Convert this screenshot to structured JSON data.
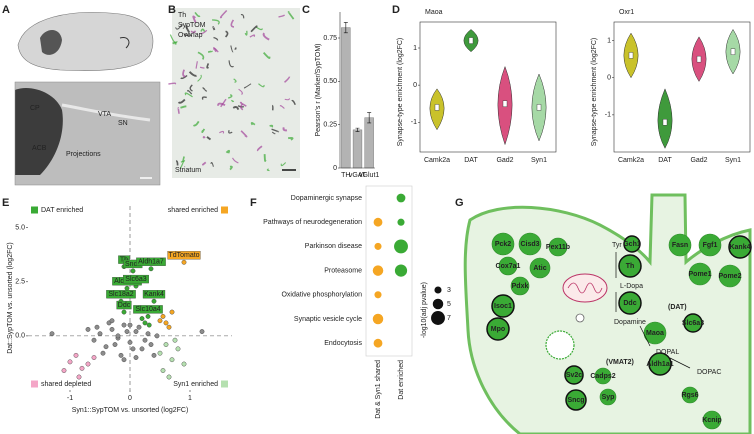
{
  "chart_data": [
    {
      "type": "bar",
      "ylabel": "Pearson's r (Marker/SypTOM)",
      "categories": [
        "TH",
        "vGAT",
        "vGlut1"
      ],
      "values": [
        0.81,
        0.22,
        0.29
      ],
      "errors": [
        0.03,
        0.01,
        0.03
      ],
      "color": "#b3b3b3",
      "ylim": [
        0,
        0.9
      ],
      "yticks": [
        0,
        0.25,
        {
          "value": 0.5,
          "label": "0.50"
        },
        0.75
      ]
    },
    {
      "type": "violin",
      "title": "Maoa",
      "ylabel": "Synapse-type enrichment (log2FC)",
      "categories": [
        "Camk2a",
        "DAT",
        "Gad2",
        "Syn1"
      ],
      "colors": [
        "#c9c22b",
        "#3f9a3c",
        "#d9507f",
        "#a6d9a6"
      ],
      "values": [
        -0.6,
        1.2,
        -0.5,
        -0.6
      ],
      "mins": [
        -1.2,
        0.9,
        -1.6,
        -1.5
      ],
      "maxs": [
        -0.1,
        1.5,
        0.5,
        0.3
      ],
      "ylim": [
        -1.8,
        1.7
      ],
      "yticks": [
        -1,
        0,
        1
      ]
    },
    {
      "type": "violin",
      "title": "Oxr1",
      "ylabel": "Synapse-type enrichment (log2FC)",
      "categories": [
        "Camk2a",
        "DAT",
        "Gad2",
        "Syn1"
      ],
      "colors": [
        "#c9c22b",
        "#3f9a3c",
        "#d9507f",
        "#a6d9a6"
      ],
      "values": [
        0.6,
        -1.2,
        0.5,
        0.7
      ],
      "mins": [
        0,
        -1.9,
        -0.1,
        0.1
      ],
      "maxs": [
        1.2,
        -0.3,
        1.1,
        1.3
      ],
      "ylim": [
        -2.0,
        1.5
      ],
      "yticks": [
        -1,
        0,
        1
      ]
    },
    {
      "type": "scatter",
      "xlabel": "Syn1::SypTOM vs. unsorted (log2FC)",
      "ylabel": "Dat::SypTOM vs. unsorted (log2FC)",
      "xlim": [
        -1.7,
        1.7
      ],
      "ylim": [
        -2.5,
        6
      ],
      "xticks": [
        -1,
        0,
        1
      ],
      "yticks": [
        {
          "value": 0,
          "label": "0.0"
        },
        2.5,
        {
          "value": 5,
          "label": "5.0"
        }
      ],
      "series": [
        {
          "name": "DAT enriched",
          "color": "#3aaa35",
          "x": [
            -0.1,
            0.05,
            0.35,
            -0.05,
            0.1,
            -0.15,
            -0.1,
            0.4,
            0.3,
            0.2,
            0.25,
            0.15,
            0.32
          ],
          "values": [
            3.2,
            3.0,
            3.1,
            2.2,
            2.3,
            1.6,
            1.1,
            1.6,
            0.9,
            0.8,
            0.6,
            1.3,
            0.5
          ],
          "labels": [
            "Th",
            "Snca",
            "Aldh1a7",
            "Aldh1a1",
            "Slc6a3",
            "Slc18a2",
            "Ddc",
            "Kank4",
            "Slc10a4",
            null,
            null,
            null,
            null
          ]
        },
        {
          "name": "shared enriched",
          "color": "#f5a623",
          "x": [
            0.9,
            0.55,
            0.6,
            0.7,
            0.5,
            0.65
          ],
          "values": [
            3.4,
            0.9,
            0.6,
            1.1,
            0.7,
            0.4
          ],
          "labels": [
            "TdTomato",
            null,
            null,
            null,
            null,
            null
          ]
        },
        {
          "name": "shared depleted",
          "color": "#f4a6c7",
          "x": [
            -1.0,
            -0.8,
            -0.9,
            -0.7,
            -1.1,
            -0.6,
            -0.85
          ],
          "values": [
            -1.2,
            -1.5,
            -0.9,
            -1.3,
            -1.6,
            -1.0,
            -1.9
          ]
        },
        {
          "name": "Syn1 enriched",
          "color": "#b5e0b0",
          "x": [
            0.5,
            0.7,
            0.6,
            0.8,
            0.9,
            0.55,
            0.75,
            0.65
          ],
          "values": [
            -0.8,
            -1.1,
            -0.4,
            -0.6,
            -1.3,
            -1.6,
            -0.2,
            -1.9
          ]
        },
        {
          "color": "#8c8c8c",
          "x": [
            -0.6,
            -0.5,
            -0.4,
            -0.3,
            -0.2,
            -0.1,
            0.0,
            0.1,
            0.2,
            0.3,
            -0.45,
            -0.35,
            -0.25,
            -0.15,
            -0.05,
            0.05,
            0.15,
            0.25,
            0.35,
            0.45,
            -0.3,
            -0.1,
            0.1,
            -0.2,
            0.0,
            -1.3,
            1.2,
            -0.55,
            0.4,
            -0.7
          ],
          "values": [
            -0.2,
            0.1,
            -0.5,
            0.3,
            -0.1,
            0.5,
            -0.3,
            0.2,
            -0.6,
            0.1,
            -0.8,
            0.6,
            -0.4,
            -0.9,
            0.2,
            -0.6,
            0.4,
            -0.2,
            -0.4,
            0.0,
            0.7,
            -1.1,
            -1.0,
            0.0,
            0.5,
            0.1,
            0.2,
            0.4,
            -0.9,
            0.3
          ]
        }
      ]
    },
    {
      "type": "dot",
      "categories": [
        "Dopaminergic synapse",
        "Pathways of neurodegeneration",
        "Parkinson disease",
        "Proteasome",
        "Oxidative phosphorylation",
        "Synaptic vesicle cycle",
        "Endocytosis"
      ],
      "series": [
        {
          "name": "Dat & Syn1 shared",
          "color": "#f5a623",
          "values": [
            null,
            4,
            3,
            5,
            3,
            5,
            4
          ]
        },
        {
          "name": "Dat enriched",
          "color": "#3aaa35",
          "values": [
            4,
            3,
            7,
            6,
            null,
            null,
            null
          ]
        }
      ],
      "size_legend": {
        "title": "-log10(adj pvalue)",
        "values": [
          3,
          5,
          7
        ]
      }
    }
  ],
  "figure": {
    "letters": [
      "A",
      "B",
      "C",
      "D",
      "E",
      "F",
      "G"
    ],
    "a_labels": [
      "CP",
      "ACB",
      "VTA",
      "SN",
      "Projections"
    ],
    "b_labels": [
      "Th",
      "SypTOM",
      "Overlap",
      "Striatum"
    ],
    "g_nodes": [
      "Pck2",
      "Cisd3",
      "Pex11b",
      "Cox7a1",
      "Atic",
      "Pdxk",
      "Isoc1",
      "Mpo",
      "Gch1",
      "Th",
      "Ddc",
      "Maoa",
      "Aldh1a1",
      "Fasn",
      "Fgf1",
      "Kank4",
      "Pome1",
      "Pome2",
      "Slc6a3",
      "Sv2c",
      "Sncg",
      "Cadps2",
      "Syp",
      "Rgs6",
      "Kcnip"
    ],
    "g_texts": [
      "Tyr",
      "L-Dopa",
      "Dopamine",
      "DOPAL",
      "DOPAC",
      "(DAT)",
      "(VMAT2)"
    ]
  }
}
